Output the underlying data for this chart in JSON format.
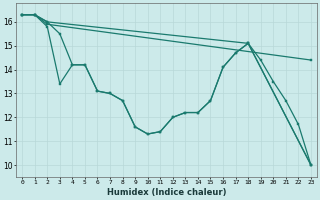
{
  "xlabel": "Humidex (Indice chaleur)",
  "ylabel": "",
  "xlim": [
    -0.5,
    23.5
  ],
  "ylim": [
    9.5,
    16.8
  ],
  "yticks": [
    10,
    11,
    12,
    13,
    14,
    15,
    16
  ],
  "xticks": [
    0,
    1,
    2,
    3,
    4,
    5,
    6,
    7,
    8,
    9,
    10,
    11,
    12,
    13,
    14,
    15,
    16,
    17,
    18,
    19,
    20,
    21,
    22,
    23
  ],
  "bg_color": "#cceaea",
  "grid_color": "#b8d8d8",
  "line_color": "#1a7a6e",
  "lines": [
    {
      "x": [
        0,
        1,
        2,
        3,
        4,
        5,
        6,
        7,
        8,
        9,
        10,
        11,
        12,
        13,
        14,
        15,
        16,
        17,
        18,
        19,
        20,
        21,
        22,
        23
      ],
      "y": [
        16.3,
        16.3,
        16.0,
        15.5,
        14.2,
        14.2,
        13.1,
        13.0,
        12.7,
        11.6,
        11.3,
        11.4,
        12.0,
        12.2,
        12.2,
        12.7,
        14.1,
        14.7,
        15.1,
        14.4,
        13.5,
        12.7,
        11.7,
        10.0
      ]
    },
    {
      "x": [
        0,
        1,
        2,
        3,
        4,
        5,
        6,
        7,
        8,
        9,
        10,
        11,
        12,
        13,
        14,
        15,
        16,
        17,
        18,
        23
      ],
      "y": [
        16.3,
        16.3,
        15.8,
        13.4,
        14.2,
        14.2,
        13.1,
        13.0,
        12.7,
        11.6,
        11.3,
        11.4,
        12.0,
        12.2,
        12.2,
        12.7,
        14.1,
        14.7,
        15.1,
        10.0
      ]
    },
    {
      "x": [
        0,
        1,
        2,
        18,
        23
      ],
      "y": [
        16.3,
        16.3,
        16.0,
        15.1,
        10.0
      ]
    },
    {
      "x": [
        0,
        1,
        2,
        23
      ],
      "y": [
        16.3,
        16.3,
        15.9,
        14.4
      ]
    }
  ]
}
